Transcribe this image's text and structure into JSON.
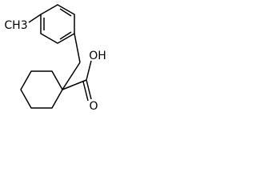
{
  "labels": {
    "methyl": "CH3",
    "hydroxyl": "OH",
    "carbonyl": "O"
  }
}
